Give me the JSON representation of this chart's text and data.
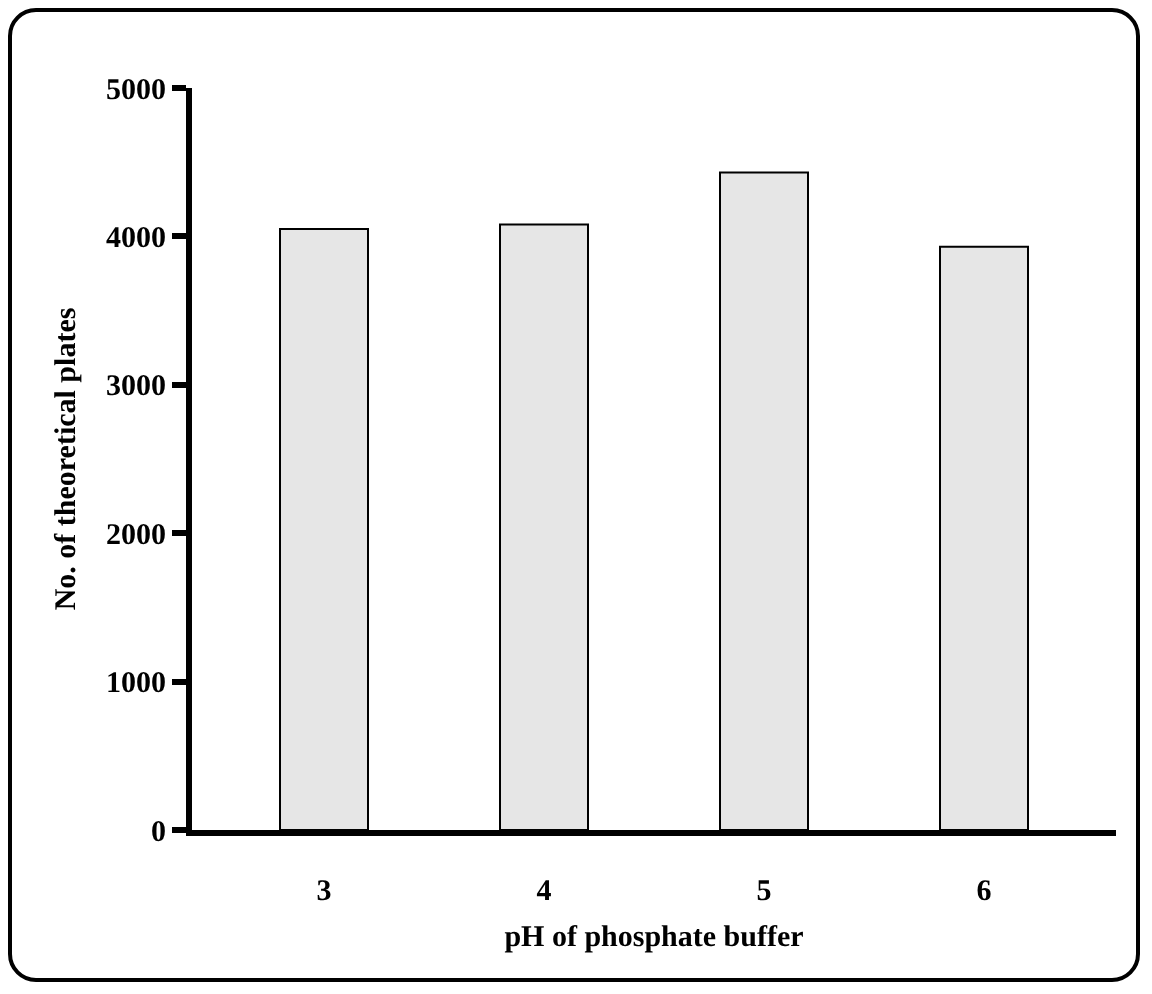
{
  "chart_data": {
    "type": "bar",
    "xlabel": "pH of phosphate buffer",
    "ylabel": "No. of theoretical plates",
    "categories": [
      "3",
      "4",
      "5",
      "6"
    ],
    "values": [
      4050,
      4080,
      4430,
      3930
    ],
    "color": "#e6e6e6",
    "ylim": [
      0,
      5000
    ],
    "yticks": [
      0,
      1000,
      2000,
      3000,
      4000,
      5000
    ],
    "grid": false,
    "legend": false
  }
}
